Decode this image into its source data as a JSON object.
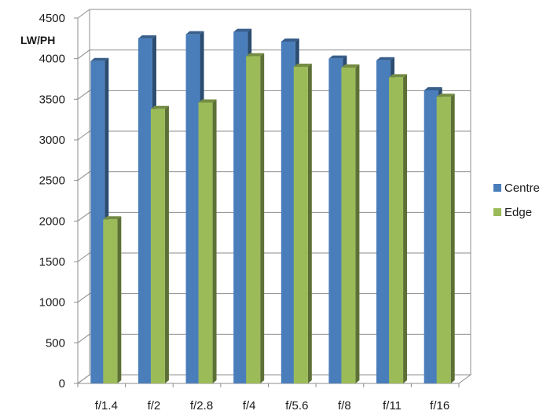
{
  "chart_data": {
    "type": "bar",
    "title": "",
    "xlabel": "",
    "ylabel": "LW/PH",
    "categories": [
      "f/1.4",
      "f/2",
      "f/2.8",
      "f/4",
      "f/5.6",
      "f/8",
      "f/11",
      "f/16"
    ],
    "series": [
      {
        "name": "Centre",
        "values": [
          3970,
          4250,
          4300,
          4330,
          4210,
          4000,
          3980,
          3610
        ],
        "color": "#4a7ebb"
      },
      {
        "name": "Edge",
        "values": [
          2020,
          3380,
          3460,
          4030,
          3900,
          3890,
          3770,
          3530
        ],
        "color": "#9bbb59"
      }
    ],
    "ylim": [
      0,
      4500
    ],
    "yticks": [
      0,
      500,
      1000,
      1500,
      2000,
      2500,
      3000,
      3500,
      4000,
      4500
    ],
    "grid": true,
    "legend_position": "right",
    "style": "3d-clustered-column"
  }
}
